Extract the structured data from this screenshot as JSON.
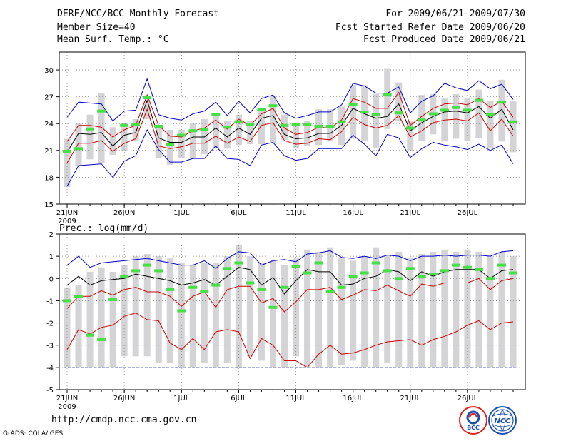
{
  "header": {
    "left": [
      "DERF/NCC/BCC Monthly Forecast",
      "Member Size=40",
      "Mean Surf. Temp.: °C"
    ],
    "right": [
      "For 2009/06/21-2009/07/30",
      "Fcst Started Refer Date 2009/06/20",
      "Fcst Produced Date 2009/06/21"
    ]
  },
  "url": "http://cmdp.ncc.cma.gov.cn",
  "credit": "GrADS: COLA/IGES",
  "logos": [
    {
      "name": "bcc-logo",
      "text": "BCC",
      "icon": "bcc-emblem"
    },
    {
      "name": "ncc-logo",
      "text": "NCC",
      "icon": "ncc-emblem"
    }
  ],
  "colors": {
    "envelope": "#0000cc",
    "spread": "#cc0000",
    "mean": "#000000",
    "observed": "#44e044",
    "box": "#d4d4d6",
    "grid": "#888888"
  },
  "chart_data": [
    {
      "type": "line",
      "title": "Mean Surf. Temp.: °C",
      "x_range": [
        1,
        40
      ],
      "ylim": [
        15,
        32
      ],
      "yticks": [
        15,
        18,
        21,
        24,
        27,
        30
      ],
      "xtick_labels": [
        {
          "day": 1,
          "label": "21JUN"
        },
        {
          "day": 6,
          "label": "26JUN"
        },
        {
          "day": 11,
          "label": "1JUL"
        },
        {
          "day": 16,
          "label": "6JUL"
        },
        {
          "day": 21,
          "label": "11JUL"
        },
        {
          "day": 26,
          "label": "16JUL"
        },
        {
          "day": 31,
          "label": "21JUL"
        },
        {
          "day": 36,
          "label": "26JUL"
        }
      ],
      "year_label": "2009",
      "series": [
        {
          "name": "max",
          "values": [
            24.7,
            26.4,
            26.3,
            26.2,
            24.3,
            25.4,
            25.5,
            29.0,
            25.0,
            24.6,
            24.4,
            25.1,
            25.4,
            26.4,
            24.9,
            26.5,
            25.2,
            26.8,
            27.2,
            25.2,
            24.6,
            24.9,
            25.3,
            25.3,
            26.1,
            28.5,
            28.2,
            27.4,
            27.4,
            28.1,
            25.2,
            26.5,
            27.1,
            28.5,
            28.0,
            27.7,
            28.8,
            27.9,
            28.4,
            26.7
          ]
        },
        {
          "name": "upper",
          "values": [
            22.0,
            23.8,
            23.8,
            23.6,
            22.5,
            23.3,
            23.8,
            27.2,
            23.8,
            22.6,
            22.5,
            23.2,
            23.5,
            24.4,
            23.4,
            24.5,
            23.8,
            25.1,
            25.7,
            23.5,
            22.8,
            23.0,
            23.6,
            23.5,
            24.4,
            26.8,
            26.4,
            25.7,
            25.7,
            27.5,
            23.8,
            24.8,
            25.7,
            26.2,
            26.3,
            26.1,
            26.8,
            25.8,
            26.5,
            24.7
          ]
        },
        {
          "name": "mean",
          "values": [
            20.8,
            22.9,
            22.8,
            23.0,
            21.5,
            22.7,
            23.0,
            26.6,
            22.4,
            21.9,
            21.9,
            22.5,
            22.5,
            23.5,
            22.5,
            23.5,
            22.8,
            24.6,
            24.9,
            22.8,
            22.3,
            22.4,
            22.9,
            22.9,
            23.8,
            25.7,
            25.1,
            24.6,
            24.8,
            26.2,
            23.2,
            24.1,
            24.8,
            25.3,
            25.4,
            25.2,
            25.9,
            24.6,
            25.6,
            23.3
          ]
        },
        {
          "name": "lower",
          "values": [
            19.6,
            21.8,
            21.8,
            22.1,
            20.9,
            21.8,
            22.3,
            25.6,
            21.5,
            21.2,
            21.4,
            21.8,
            21.8,
            22.6,
            21.8,
            22.5,
            22.0,
            23.8,
            24.1,
            22.1,
            21.7,
            21.8,
            22.3,
            22.2,
            23.1,
            24.7,
            23.9,
            23.5,
            23.8,
            24.9,
            22.5,
            23.2,
            24.1,
            24.4,
            24.5,
            24.3,
            25.2,
            23.2,
            24.5,
            22.6
          ]
        },
        {
          "name": "min",
          "values": [
            17.0,
            19.3,
            19.4,
            19.5,
            18.0,
            19.8,
            20.4,
            23.3,
            21.1,
            19.7,
            19.7,
            20.1,
            20.1,
            21.5,
            20.1,
            20.0,
            19.3,
            21.6,
            21.9,
            20.4,
            19.9,
            20.1,
            21.2,
            21.2,
            21.2,
            22.7,
            21.7,
            20.4,
            22.8,
            22.4,
            20.2,
            21.2,
            21.9,
            21.6,
            21.4,
            21.1,
            21.7,
            21.0,
            21.6,
            19.5
          ]
        }
      ],
      "boxes": [
        [
          16.9,
          22.3
        ],
        [
          19.3,
          24.0
        ],
        [
          20.0,
          25.0
        ],
        [
          19.6,
          27.4
        ],
        [
          20.5,
          23.6
        ],
        [
          20.9,
          24.1
        ],
        [
          22.0,
          24.5
        ],
        [
          24.5,
          26.5
        ],
        [
          20.1,
          23.5
        ],
        [
          19.4,
          23.3
        ],
        [
          20.1,
          23.3
        ],
        [
          20.1,
          24.0
        ],
        [
          20.6,
          24.5
        ],
        [
          21.3,
          25.0
        ],
        [
          21.2,
          24.3
        ],
        [
          21.6,
          25.0
        ],
        [
          21.7,
          24.3
        ],
        [
          21.7,
          25.7
        ],
        [
          21.8,
          27.1
        ],
        [
          22.2,
          25.0
        ],
        [
          21.3,
          23.7
        ],
        [
          21.5,
          24.3
        ],
        [
          21.6,
          25.6
        ],
        [
          22.0,
          25.6
        ],
        [
          21.6,
          25.9
        ],
        [
          22.3,
          28.3
        ],
        [
          22.1,
          28.3
        ],
        [
          21.3,
          27.3
        ],
        [
          23.4,
          30.2
        ],
        [
          24.3,
          28.6
        ],
        [
          20.9,
          24.3
        ],
        [
          22.1,
          27.2
        ],
        [
          22.8,
          27.3
        ],
        [
          22.0,
          26.8
        ],
        [
          22.3,
          27.3
        ],
        [
          22.1,
          26.8
        ],
        [
          22.4,
          27.8
        ],
        [
          21.3,
          26.5
        ],
        [
          22.0,
          28.9
        ],
        [
          20.8,
          26.5
        ]
      ],
      "observed": [
        20.9,
        21.2,
        23.4,
        25.4,
        null,
        23.8,
        23.9,
        26.9,
        23.7,
        21.7,
        22.7,
        23.2,
        23.3,
        25.0,
        23.6,
        24.2,
        23.9,
        25.6,
        26.0,
        23.8,
        23.9,
        23.9,
        23.7,
        23.7,
        24.2,
        26.1,
        25.3,
        25.0,
        27.2,
        25.2,
        23.5,
        24.4,
        25.1,
        25.5,
        25.8,
        25.5,
        26.6,
        25.0,
        26.4,
        24.2
      ]
    },
    {
      "type": "line",
      "title": "Prec.: log(mm/d)",
      "x_range": [
        1,
        40
      ],
      "ylim": [
        -5,
        2
      ],
      "yticks": [
        -5,
        -4,
        -3,
        -2,
        -1,
        0,
        1,
        2
      ],
      "xtick_labels": [
        {
          "day": 1,
          "label": "21JUN"
        },
        {
          "day": 6,
          "label": "26JUN"
        },
        {
          "day": 11,
          "label": "1JUL"
        },
        {
          "day": 16,
          "label": "6JUL"
        },
        {
          "day": 21,
          "label": "11JUL"
        },
        {
          "day": 26,
          "label": "16JUL"
        },
        {
          "day": 31,
          "label": "21JUL"
        },
        {
          "day": 36,
          "label": "26JUL"
        }
      ],
      "year_label": "2009",
      "floor_value": -4,
      "series": [
        {
          "name": "max",
          "values": [
            0.6,
            1.0,
            0.5,
            0.7,
            0.75,
            0.8,
            0.85,
            0.9,
            0.8,
            0.7,
            0.6,
            0.6,
            0.8,
            0.45,
            0.9,
            1.2,
            1.15,
            0.6,
            0.8,
            0.85,
            0.75,
            1.1,
            1.15,
            1.25,
            0.95,
            0.9,
            1.0,
            0.9,
            1.05,
            1.0,
            0.8,
            1.0,
            1.0,
            1.05,
            1.0,
            1.05,
            1.05,
            1.0,
            1.2,
            1.25
          ]
        },
        {
          "name": "mean",
          "values": [
            -0.3,
            0.1,
            -0.3,
            -0.1,
            -0.05,
            0.0,
            0.2,
            0.1,
            0.0,
            -0.1,
            -0.3,
            -0.2,
            -0.05,
            -0.3,
            0.1,
            0.5,
            0.4,
            -0.3,
            0.05,
            -0.7,
            -0.1,
            0.4,
            0.3,
            0.3,
            -0.3,
            -0.25,
            0.0,
            0.1,
            0.4,
            0.3,
            -0.1,
            0.3,
            0.1,
            0.3,
            0.4,
            0.4,
            0.4,
            0.0,
            0.35,
            0.4
          ]
        },
        {
          "name": "lower",
          "values": [
            -1.35,
            -0.8,
            -0.8,
            -0.55,
            -0.75,
            -0.5,
            -0.4,
            -0.6,
            -0.6,
            -0.8,
            -1.25,
            -0.8,
            -0.6,
            -1.3,
            -0.5,
            -0.35,
            -0.35,
            -1.1,
            -0.9,
            -1.5,
            -1.05,
            -0.5,
            -0.5,
            -0.4,
            -0.95,
            -0.75,
            -0.5,
            -0.55,
            -0.3,
            -0.55,
            -0.8,
            -0.25,
            -0.35,
            -0.2,
            -0.2,
            -0.2,
            0.0,
            -0.5,
            -0.1,
            0.0
          ]
        },
        {
          "name": "low_extreme",
          "values": [
            -3.2,
            -2.3,
            -2.5,
            -2.2,
            -2.1,
            -1.7,
            -1.55,
            -1.85,
            -1.9,
            -2.9,
            -3.2,
            -2.7,
            -3.2,
            -2.4,
            -2.3,
            -2.4,
            -3.6,
            -2.7,
            -3.0,
            -3.7,
            -3.7,
            -4.0,
            -3.4,
            -3.0,
            -3.4,
            -3.35,
            -3.2,
            -3.0,
            -2.85,
            -2.8,
            -2.75,
            -3.0,
            -2.75,
            -2.6,
            -2.4,
            -2.1,
            -1.9,
            -2.3,
            -2.0,
            -1.95
          ]
        }
      ],
      "boxes": [
        [
          -4.0,
          -0.4
        ],
        [
          -4.0,
          -0.3
        ],
        [
          -4.0,
          0.3
        ],
        [
          -4.0,
          0.5
        ],
        [
          -4.0,
          0.3
        ],
        [
          -3.5,
          0.6
        ],
        [
          -3.5,
          1.0
        ],
        [
          -3.5,
          1.1
        ],
        [
          -3.8,
          1.0
        ],
        [
          -3.8,
          0.9
        ],
        [
          -4.0,
          0.7
        ],
        [
          -4.0,
          0.6
        ],
        [
          -3.8,
          0.7
        ],
        [
          -4.0,
          0.7
        ],
        [
          -3.8,
          1.0
        ],
        [
          -4.0,
          1.5
        ],
        [
          -3.5,
          1.0
        ],
        [
          -3.7,
          0.7
        ],
        [
          -4.0,
          0.8
        ],
        [
          -4.0,
          0.6
        ],
        [
          -3.5,
          0.9
        ],
        [
          -4.0,
          1.3
        ],
        [
          -4.0,
          1.2
        ],
        [
          -4.0,
          1.4
        ],
        [
          -3.9,
          0.9
        ],
        [
          -3.7,
          0.8
        ],
        [
          -4.0,
          1.0
        ],
        [
          -4.0,
          1.4
        ],
        [
          -3.8,
          1.0
        ],
        [
          -4.0,
          1.2
        ],
        [
          -4.0,
          0.9
        ],
        [
          -4.0,
          1.1
        ],
        [
          -4.0,
          1.2
        ],
        [
          -4.0,
          1.3
        ],
        [
          -4.0,
          1.2
        ],
        [
          -4.0,
          1.3
        ],
        [
          -4.0,
          1.2
        ],
        [
          -4.0,
          1.0
        ],
        [
          -4.0,
          1.2
        ],
        [
          -4.0,
          1.0
        ]
      ],
      "observed": [
        -1.0,
        -0.8,
        -2.55,
        -2.75,
        -0.95,
        0.1,
        0.35,
        0.6,
        0.35,
        -0.5,
        -1.45,
        -0.4,
        -0.6,
        -0.3,
        0.45,
        0.7,
        -0.2,
        -0.5,
        -1.3,
        -0.4,
        0.55,
        0.25,
        0.7,
        -0.6,
        -0.4,
        0.1,
        0.25,
        0.7,
        0.35,
        0.0,
        0.45,
        0.1,
        0.2,
        0.35,
        0.6,
        0.5,
        0.4,
        0.0,
        0.6,
        0.25
      ]
    }
  ]
}
